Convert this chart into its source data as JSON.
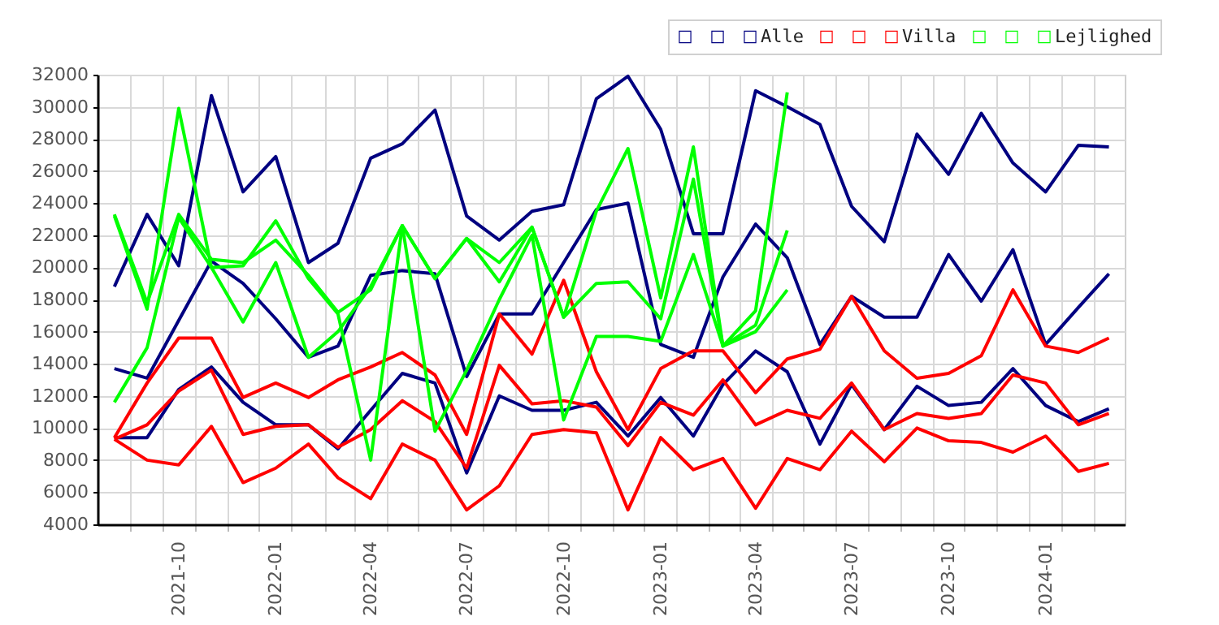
{
  "chart_data": {
    "type": "line",
    "x": [
      "2021-08",
      "2021-09",
      "2021-10",
      "2021-11",
      "2021-12",
      "2022-01",
      "2022-02",
      "2022-03",
      "2022-04",
      "2022-05",
      "2022-06",
      "2022-07",
      "2022-08",
      "2022-09",
      "2022-10",
      "2022-11",
      "2022-12",
      "2023-01",
      "2023-02",
      "2023-03",
      "2023-04",
      "2023-05",
      "2023-06",
      "2023-07",
      "2023-08",
      "2023-09",
      "2023-10",
      "2023-11",
      "2023-12",
      "2024-01",
      "2024-02",
      "2024-03"
    ],
    "series": [
      {
        "color": "#000080",
        "values": [
          18800,
          23300,
          20100,
          30700,
          24700,
          26900,
          20300,
          21500,
          26800,
          27700,
          29800,
          23200,
          21700,
          23500,
          23900,
          30500,
          31900,
          28600,
          22100,
          22100,
          31000,
          30000,
          28900,
          23800,
          21600,
          28300,
          25800,
          29600,
          26500,
          24700,
          27600,
          27500
        ]
      },
      {
        "color": "#000080",
        "values": [
          13700,
          13100,
          16700,
          20400,
          19000,
          16800,
          14400,
          15100,
          19500,
          19800,
          19600,
          13200,
          17100,
          17100,
          20300,
          23600,
          24000,
          15200,
          14400,
          19400,
          22700,
          20600,
          15200,
          18200,
          16900,
          16900,
          20800,
          17900,
          21100,
          15200,
          17500,
          19600
        ]
      },
      {
        "name": "Alle",
        "color": "#000080",
        "values": [
          9400,
          9400,
          12400,
          13800,
          11600,
          10200,
          10200,
          8700,
          11100,
          13400,
          12800,
          7200,
          12000,
          11100,
          11100,
          11600,
          9500,
          11900,
          9500,
          12700,
          14800,
          13500,
          9000,
          12700,
          9900,
          12600,
          11400,
          11600,
          13700,
          11400,
          10400,
          11200
        ]
      },
      {
        "color": "#ff0000",
        "values": [
          9400,
          12800,
          15600,
          15600,
          11900,
          12800,
          11900,
          13000,
          13800,
          14700,
          13300,
          9600,
          17100,
          14600,
          19200,
          13500,
          9900,
          13700,
          14800,
          14800,
          12200,
          14300,
          14900,
          18200,
          14800,
          13100,
          13400,
          14500,
          18600,
          15100,
          14700,
          15600
        ]
      },
      {
        "color": "#ff0000",
        "values": [
          9300,
          10200,
          12300,
          13600,
          9600,
          10100,
          10200,
          8800,
          9900,
          11700,
          10400,
          7500,
          13900,
          11500,
          11700,
          11300,
          8900,
          11600,
          10800,
          13000,
          10200,
          11100,
          10600,
          12800,
          9900,
          10900,
          10600,
          10900,
          13300,
          12800,
          10200,
          10900
        ]
      },
      {
        "name": "Villa",
        "color": "#ff0000",
        "values": [
          9300,
          8000,
          7700,
          10100,
          6600,
          7500,
          9000,
          6900,
          5600,
          9000,
          8000,
          4900,
          6400,
          9600,
          9900,
          9700,
          4900,
          9400,
          7400,
          8100,
          5000,
          8100,
          7400,
          9800,
          7900,
          10000,
          9200,
          9100,
          8500,
          9500,
          7300,
          7800
        ]
      },
      {
        "color": "#00ff00",
        "values": [
          23200,
          17400,
          29900,
          20000,
          20100,
          22900,
          19300,
          17100,
          8000,
          22600,
          19300,
          21800,
          20300,
          22500,
          16900,
          23500,
          27400,
          18100,
          27500,
          15100,
          17300,
          30900,
          null,
          null,
          null,
          null,
          null,
          null,
          null,
          null,
          null,
          null
        ]
      },
      {
        "color": "#00ff00",
        "values": [
          23300,
          17800,
          23300,
          20500,
          20300,
          21700,
          19500,
          17200,
          18600,
          22600,
          19300,
          21800,
          19100,
          22500,
          16900,
          19000,
          19100,
          16800,
          25500,
          15100,
          16400,
          22300,
          null,
          null,
          null,
          null,
          null,
          null,
          null,
          null,
          null,
          null
        ]
      },
      {
        "name": "Lejlighed",
        "color": "#00ff00",
        "values": [
          11600,
          15000,
          23100,
          20000,
          16600,
          20300,
          14400,
          16000,
          18800,
          22600,
          9800,
          13600,
          18000,
          22000,
          10500,
          15700,
          15700,
          15400,
          20800,
          15100,
          16000,
          18600,
          null,
          null,
          null,
          null,
          null,
          null,
          null,
          null,
          null,
          null
        ]
      }
    ],
    "xlim": [
      "2021-07-16",
      "2024-03-16"
    ],
    "xticks": [
      {
        "value": "2021-10",
        "label": "2021-10"
      },
      {
        "value": "2022-01",
        "label": "2022-01"
      },
      {
        "value": "2022-04",
        "label": "2022-04"
      },
      {
        "value": "2022-07",
        "label": "2022-07"
      },
      {
        "value": "2022-10",
        "label": "2022-10"
      },
      {
        "value": "2023-01",
        "label": "2023-01"
      },
      {
        "value": "2023-04",
        "label": "2023-04"
      },
      {
        "value": "2023-07",
        "label": "2023-07"
      },
      {
        "value": "2023-10",
        "label": "2023-10"
      },
      {
        "value": "2024-01",
        "label": "2024-01"
      },
      {
        "value": "2021-08-16",
        "label": null
      },
      {
        "value": "2021-09-16",
        "label": null
      },
      {
        "value": "2021-10-16",
        "label": null
      },
      {
        "value": "2021-11-16",
        "label": null
      },
      {
        "value": "2021-12-16",
        "label": null
      },
      {
        "value": "2022-01-16",
        "label": null
      },
      {
        "value": "2022-02-16",
        "label": null
      },
      {
        "value": "2022-03-16",
        "label": null
      },
      {
        "value": "2022-04-16",
        "label": null
      },
      {
        "value": "2022-05-16",
        "label": null
      },
      {
        "value": "2022-06-16",
        "label": null
      },
      {
        "value": "2022-07-16",
        "label": null
      },
      {
        "value": "2022-08-16",
        "label": null
      },
      {
        "value": "2022-09-16",
        "label": null
      },
      {
        "value": "2022-10-16",
        "label": null
      },
      {
        "value": "2022-11-16",
        "label": null
      },
      {
        "value": "2022-12-16",
        "label": null
      },
      {
        "value": "2023-01-16",
        "label": null
      },
      {
        "value": "2023-02-16",
        "label": null
      },
      {
        "value": "2023-03-16",
        "label": null
      },
      {
        "value": "2023-04-16",
        "label": null
      },
      {
        "value": "2023-05-16",
        "label": null
      },
      {
        "value": "2023-06-16",
        "label": null
      },
      {
        "value": "2023-07-16",
        "label": null
      },
      {
        "value": "2023-08-16",
        "label": null
      },
      {
        "value": "2023-09-16",
        "label": null
      },
      {
        "value": "2023-10-16",
        "label": null
      },
      {
        "value": "2023-11-16",
        "label": null
      },
      {
        "value": "2023-12-16",
        "label": null
      },
      {
        "value": "2024-01-16",
        "label": null
      },
      {
        "value": "2024-02-16",
        "label": null
      }
    ],
    "ylim": [
      4000,
      32000
    ],
    "yticks": [
      4000,
      6000,
      8000,
      10000,
      12000,
      14000,
      16000,
      18000,
      20000,
      22000,
      24000,
      26000,
      28000,
      30000,
      32000
    ],
    "grid": true,
    "legend": "top right"
  }
}
